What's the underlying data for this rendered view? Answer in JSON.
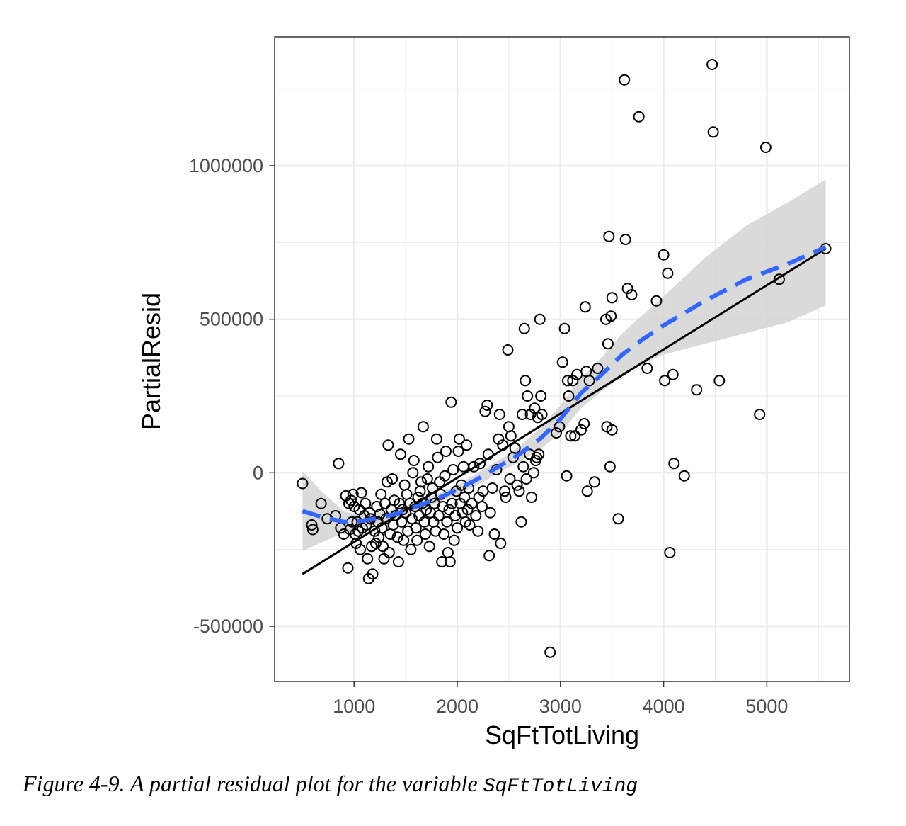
{
  "chart_data": {
    "type": "scatter",
    "xlabel": "SqFtTotLiving",
    "ylabel": "PartialResid",
    "xlim": [
      230,
      5800
    ],
    "ylim": [
      -680000,
      1420000
    ],
    "x_ticks": [
      1000,
      2000,
      3000,
      4000,
      5000
    ],
    "x_tick_labels": [
      "1000",
      "2000",
      "3000",
      "4000",
      "5000"
    ],
    "x_minor_ticks": [
      1500,
      2500,
      3500,
      4500,
      5500
    ],
    "y_ticks": [
      -500000,
      0,
      500000,
      1000000
    ],
    "y_tick_labels": [
      "-500000",
      "0",
      "500000",
      "1000000"
    ],
    "y_minor_ticks": [
      -250000,
      250000,
      750000,
      1250000
    ],
    "grid": true,
    "colors": {
      "points": "#000000",
      "fit_line": "#000000",
      "smooth_line": "#3366ff",
      "ribbon": "#d3d3d3",
      "grid": "#ebebeb",
      "border": "#333333"
    },
    "fit_line": {
      "x": [
        500,
        5570
      ],
      "y": [
        -330000,
        730000
      ]
    },
    "smooth": {
      "x": [
        500,
        700,
        900,
        1000,
        1200,
        1400,
        1600,
        1800,
        2000,
        2200,
        2400,
        2600,
        2800,
        3000,
        3200,
        3400,
        3600,
        3800,
        4000,
        4400,
        4800,
        5200,
        5570
      ],
      "y": [
        -125000,
        -145000,
        -160000,
        -160000,
        -150000,
        -135000,
        -110000,
        -85000,
        -55000,
        -20000,
        20000,
        60000,
        110000,
        175000,
        260000,
        320000,
        385000,
        435000,
        480000,
        560000,
        630000,
        680000,
        735000
      ],
      "lower": [
        -255000,
        -225000,
        -195000,
        -185000,
        -170000,
        -150000,
        -125000,
        -100000,
        -70000,
        -40000,
        0,
        35000,
        75000,
        130000,
        210000,
        265000,
        315000,
        355000,
        385000,
        420000,
        455000,
        490000,
        545000
      ],
      "upper": [
        5000,
        -65000,
        -125000,
        -135000,
        -130000,
        -120000,
        -95000,
        -70000,
        -40000,
        0,
        40000,
        85000,
        145000,
        220000,
        310000,
        375000,
        455000,
        515000,
        575000,
        700000,
        805000,
        880000,
        955000
      ]
    },
    "points": [
      [
        500,
        -35000
      ],
      [
        590,
        -170000
      ],
      [
        600,
        -185000
      ],
      [
        680,
        -100000
      ],
      [
        740,
        -150000
      ],
      [
        820,
        -140000
      ],
      [
        850,
        30000
      ],
      [
        870,
        -180000
      ],
      [
        900,
        -200000
      ],
      [
        920,
        -75000
      ],
      [
        940,
        -310000
      ],
      [
        950,
        -100000
      ],
      [
        960,
        -185000
      ],
      [
        970,
        -90000
      ],
      [
        980,
        -160000
      ],
      [
        990,
        -70000
      ],
      [
        1000,
        -110000
      ],
      [
        1010,
        -200000
      ],
      [
        1020,
        -230000
      ],
      [
        1030,
        -160000
      ],
      [
        1040,
        -190000
      ],
      [
        1050,
        -120000
      ],
      [
        1060,
        -250000
      ],
      [
        1070,
        -65000
      ],
      [
        1080,
        -180000
      ],
      [
        1100,
        -140000
      ],
      [
        1110,
        -100000
      ],
      [
        1120,
        -170000
      ],
      [
        1130,
        -280000
      ],
      [
        1140,
        -345000
      ],
      [
        1150,
        -130000
      ],
      [
        1160,
        -150000
      ],
      [
        1170,
        -240000
      ],
      [
        1180,
        -330000
      ],
      [
        1200,
        -190000
      ],
      [
        1210,
        -230000
      ],
      [
        1220,
        -110000
      ],
      [
        1230,
        -160000
      ],
      [
        1240,
        -210000
      ],
      [
        1250,
        -135000
      ],
      [
        1260,
        -70000
      ],
      [
        1270,
        -180000
      ],
      [
        1280,
        -240000
      ],
      [
        1290,
        -280000
      ],
      [
        1300,
        -100000
      ],
      [
        1310,
        -150000
      ],
      [
        1320,
        -30000
      ],
      [
        1330,
        90000
      ],
      [
        1340,
        -260000
      ],
      [
        1350,
        -200000
      ],
      [
        1360,
        -120000
      ],
      [
        1370,
        -20000
      ],
      [
        1380,
        -170000
      ],
      [
        1390,
        -90000
      ],
      [
        1400,
        -140000
      ],
      [
        1420,
        -210000
      ],
      [
        1430,
        -290000
      ],
      [
        1440,
        -100000
      ],
      [
        1450,
        60000
      ],
      [
        1460,
        -160000
      ],
      [
        1470,
        -120000
      ],
      [
        1480,
        -220000
      ],
      [
        1490,
        -40000
      ],
      [
        1500,
        -130000
      ],
      [
        1510,
        -70000
      ],
      [
        1520,
        -190000
      ],
      [
        1530,
        110000
      ],
      [
        1540,
        -100000
      ],
      [
        1550,
        -250000
      ],
      [
        1560,
        -150000
      ],
      [
        1570,
        0
      ],
      [
        1580,
        40000
      ],
      [
        1590,
        -110000
      ],
      [
        1600,
        -180000
      ],
      [
        1610,
        -220000
      ],
      [
        1620,
        -80000
      ],
      [
        1630,
        -140000
      ],
      [
        1640,
        -60000
      ],
      [
        1650,
        -30000
      ],
      [
        1660,
        -100000
      ],
      [
        1670,
        150000
      ],
      [
        1680,
        -160000
      ],
      [
        1690,
        -200000
      ],
      [
        1700,
        -120000
      ],
      [
        1710,
        -20000
      ],
      [
        1720,
        20000
      ],
      [
        1730,
        -240000
      ],
      [
        1740,
        -130000
      ],
      [
        1750,
        -80000
      ],
      [
        1760,
        -50000
      ],
      [
        1770,
        -160000
      ],
      [
        1780,
        -100000
      ],
      [
        1790,
        -190000
      ],
      [
        1800,
        110000
      ],
      [
        1810,
        50000
      ],
      [
        1820,
        -140000
      ],
      [
        1830,
        -30000
      ],
      [
        1840,
        -70000
      ],
      [
        1850,
        -290000
      ],
      [
        1860,
        -110000
      ],
      [
        1870,
        -200000
      ],
      [
        1880,
        -10000
      ],
      [
        1890,
        70000
      ],
      [
        1900,
        -160000
      ],
      [
        1910,
        -260000
      ],
      [
        1920,
        -120000
      ],
      [
        1930,
        -290000
      ],
      [
        1940,
        230000
      ],
      [
        1950,
        -100000
      ],
      [
        1960,
        10000
      ],
      [
        1970,
        -220000
      ],
      [
        1980,
        -140000
      ],
      [
        1990,
        -60000
      ],
      [
        2000,
        -180000
      ],
      [
        2010,
        70000
      ],
      [
        2020,
        110000
      ],
      [
        2030,
        -100000
      ],
      [
        2040,
        -40000
      ],
      [
        2050,
        -130000
      ],
      [
        2060,
        20000
      ],
      [
        2070,
        -80000
      ],
      [
        2080,
        -160000
      ],
      [
        2090,
        90000
      ],
      [
        2100,
        -120000
      ],
      [
        2110,
        -50000
      ],
      [
        2120,
        -170000
      ],
      [
        2140,
        -100000
      ],
      [
        2160,
        20000
      ],
      [
        2180,
        -140000
      ],
      [
        2200,
        -190000
      ],
      [
        2210,
        -80000
      ],
      [
        2220,
        30000
      ],
      [
        2240,
        -110000
      ],
      [
        2250,
        -60000
      ],
      [
        2270,
        200000
      ],
      [
        2290,
        220000
      ],
      [
        2300,
        60000
      ],
      [
        2310,
        -270000
      ],
      [
        2320,
        -130000
      ],
      [
        2340,
        -50000
      ],
      [
        2360,
        -200000
      ],
      [
        2380,
        10000
      ],
      [
        2400,
        110000
      ],
      [
        2410,
        190000
      ],
      [
        2420,
        -230000
      ],
      [
        2440,
        90000
      ],
      [
        2460,
        -60000
      ],
      [
        2470,
        -80000
      ],
      [
        2490,
        400000
      ],
      [
        2500,
        150000
      ],
      [
        2510,
        -20000
      ],
      [
        2520,
        120000
      ],
      [
        2540,
        50000
      ],
      [
        2560,
        80000
      ],
      [
        2580,
        -40000
      ],
      [
        2600,
        -60000
      ],
      [
        2620,
        -160000
      ],
      [
        2630,
        190000
      ],
      [
        2640,
        20000
      ],
      [
        2650,
        470000
      ],
      [
        2660,
        300000
      ],
      [
        2670,
        -20000
      ],
      [
        2680,
        250000
      ],
      [
        2700,
        60000
      ],
      [
        2710,
        190000
      ],
      [
        2720,
        -80000
      ],
      [
        2740,
        0
      ],
      [
        2750,
        210000
      ],
      [
        2760,
        40000
      ],
      [
        2770,
        50000
      ],
      [
        2780,
        180000
      ],
      [
        2790,
        60000
      ],
      [
        2800,
        500000
      ],
      [
        2810,
        250000
      ],
      [
        2820,
        190000
      ],
      [
        2900,
        -585000
      ],
      [
        2960,
        130000
      ],
      [
        2990,
        150000
      ],
      [
        3020,
        360000
      ],
      [
        3040,
        470000
      ],
      [
        3060,
        -10000
      ],
      [
        3070,
        300000
      ],
      [
        3080,
        250000
      ],
      [
        3100,
        120000
      ],
      [
        3120,
        300000
      ],
      [
        3140,
        120000
      ],
      [
        3160,
        320000
      ],
      [
        3200,
        140000
      ],
      [
        3230,
        160000
      ],
      [
        3240,
        540000
      ],
      [
        3250,
        330000
      ],
      [
        3260,
        -60000
      ],
      [
        3280,
        300000
      ],
      [
        3330,
        -30000
      ],
      [
        3360,
        340000
      ],
      [
        3440,
        500000
      ],
      [
        3450,
        150000
      ],
      [
        3460,
        420000
      ],
      [
        3470,
        770000
      ],
      [
        3480,
        20000
      ],
      [
        3490,
        510000
      ],
      [
        3500,
        570000
      ],
      [
        3500,
        140000
      ],
      [
        3560,
        -150000
      ],
      [
        3620,
        1280000
      ],
      [
        3630,
        760000
      ],
      [
        3650,
        600000
      ],
      [
        3690,
        580000
      ],
      [
        3760,
        1160000
      ],
      [
        3840,
        340000
      ],
      [
        3930,
        560000
      ],
      [
        4000,
        710000
      ],
      [
        4010,
        300000
      ],
      [
        4040,
        650000
      ],
      [
        4060,
        -260000
      ],
      [
        4090,
        320000
      ],
      [
        4100,
        30000
      ],
      [
        4200,
        -10000
      ],
      [
        4320,
        270000
      ],
      [
        4470,
        1330000
      ],
      [
        4480,
        1110000
      ],
      [
        4540,
        300000
      ],
      [
        4930,
        190000
      ],
      [
        4990,
        1060000
      ],
      [
        5120,
        630000
      ],
      [
        5570,
        730000
      ]
    ]
  },
  "caption": {
    "text": "Figure 4-9. A partial residual plot for the variable ",
    "code": "SqFtTotLiving"
  }
}
